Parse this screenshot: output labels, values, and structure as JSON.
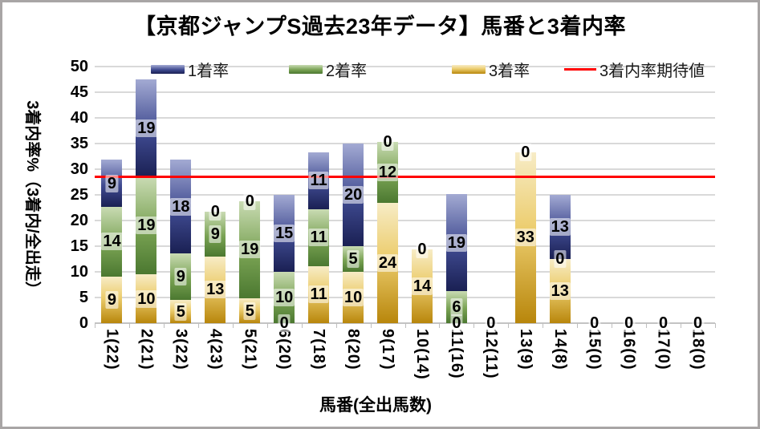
{
  "title": "【京都ジャンプS過去23年データ】馬番と3着内率",
  "legend": [
    {
      "label": "1着率",
      "marker": "swatch-blue"
    },
    {
      "label": "2着率",
      "marker": "swatch-green"
    },
    {
      "label": "3着率",
      "marker": "swatch-yellow"
    },
    {
      "label": "3着内率期待値",
      "marker": "red-line"
    }
  ],
  "y_axis": {
    "title": "3着内率%（3着内/全出走）",
    "ticks": [
      0,
      5,
      10,
      15,
      20,
      25,
      30,
      35,
      40,
      45,
      50
    ],
    "max": 50
  },
  "x_axis": {
    "title": "馬番(全出馬数)"
  },
  "colors": {
    "blue_top": "#a3aad3",
    "blue_bottom": "#1a2053",
    "green_top": "#c9dbb3",
    "green_bottom": "#4b7830",
    "yellow_top": "#f7ecc6",
    "yellow_bottom": "#b8860b",
    "expected_line": "#ff0000",
    "gridline": "#d9d9d9",
    "frame_border": "#a8a5a5"
  },
  "chart_data": {
    "type": "bar",
    "stacked": true,
    "title": "【京都ジャンプS過去23年データ】馬番と3着内率",
    "xlabel": "馬番(全出馬数)",
    "ylabel": "3着内率%（3着内/全出走）",
    "ylim": [
      0,
      50
    ],
    "grid": true,
    "legend_position": "top-inside",
    "categories": [
      "1(22)",
      "2(21)",
      "3(22)",
      "4(23)",
      "5(21)",
      "6(20)",
      "7(18)",
      "8(20)",
      "9(17)",
      "10(14)",
      "11(16)",
      "12(11)",
      "13(9)",
      "14(8)",
      "15(0)",
      "16(0)",
      "17(0)",
      "18(0)"
    ],
    "series": [
      {
        "name": "3着率",
        "stack_position": "bottom",
        "color_key": "yellow",
        "values": [
          9.1,
          9.5,
          4.5,
          13.0,
          4.8,
          0,
          11.1,
          10,
          23.5,
          14.3,
          0,
          0,
          33.3,
          12.5,
          0,
          0,
          0,
          0
        ],
        "labels": [
          "9",
          "10",
          "5",
          "13",
          "5",
          "0",
          "11",
          "10",
          "24",
          "14",
          "0",
          "0",
          "33",
          "13",
          "0",
          "0",
          "0",
          "0"
        ]
      },
      {
        "name": "2着率",
        "stack_position": "middle",
        "color_key": "green",
        "values": [
          13.6,
          19.0,
          9.1,
          8.7,
          19.0,
          10,
          11.1,
          5,
          11.8,
          0,
          6.3,
          0,
          0,
          0,
          0,
          0,
          0,
          0
        ],
        "labels": [
          "14",
          "19",
          "9",
          "9",
          "19",
          "10",
          "11",
          "5",
          "12",
          "0",
          "6",
          null,
          "0",
          "0",
          null,
          null,
          null,
          null
        ]
      },
      {
        "name": "1着率",
        "stack_position": "top",
        "color_key": "blue",
        "values": [
          9.1,
          19.0,
          18.2,
          0,
          0,
          15,
          11.1,
          20,
          0,
          0,
          18.8,
          0,
          0,
          12.5,
          0,
          0,
          0,
          0
        ],
        "labels": [
          "9",
          "19",
          "18",
          "0",
          "0",
          "15",
          "11",
          "20",
          "0",
          null,
          "19",
          null,
          null,
          "13",
          null,
          null,
          null,
          null
        ]
      }
    ],
    "expected_line": {
      "name": "3着内率期待値",
      "value": 28.6
    }
  }
}
